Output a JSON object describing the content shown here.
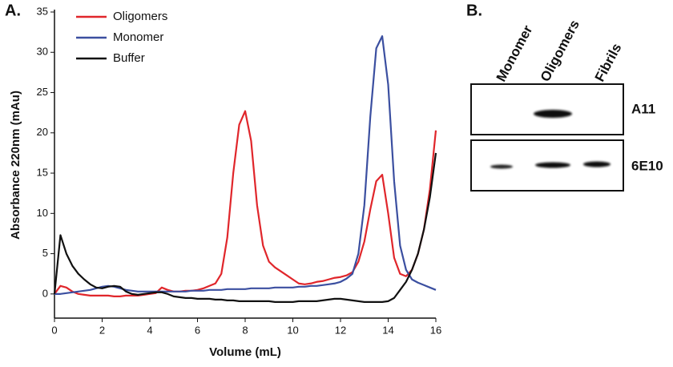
{
  "panels": [
    "A.",
    "B."
  ],
  "chart_data": {
    "type": "line",
    "xlabel": "Volume (mL)",
    "ylabel": "Absorbance 220nm (mAu)",
    "x": [
      0,
      0.25,
      0.5,
      0.75,
      1,
      1.25,
      1.5,
      1.75,
      2,
      2.25,
      2.5,
      2.75,
      3,
      3.25,
      3.5,
      3.75,
      4,
      4.25,
      4.5,
      4.75,
      5,
      5.25,
      5.5,
      5.75,
      6,
      6.25,
      6.5,
      6.75,
      7,
      7.25,
      7.5,
      7.75,
      8,
      8.25,
      8.5,
      8.75,
      9,
      9.25,
      9.5,
      9.75,
      10,
      10.25,
      10.5,
      10.75,
      11,
      11.25,
      11.5,
      11.75,
      12,
      12.25,
      12.5,
      12.75,
      13,
      13.25,
      13.5,
      13.75,
      14,
      14.25,
      14.5,
      14.75,
      15,
      15.25,
      15.5,
      15.75,
      16
    ],
    "series": [
      {
        "name": "Oligomers",
        "color": "#e0262b",
        "values": [
          0,
          1.0,
          0.8,
          0.3,
          0,
          -0.1,
          -0.2,
          -0.2,
          -0.2,
          -0.2,
          -0.3,
          -0.3,
          -0.2,
          -0.2,
          -0.2,
          -0.1,
          0,
          0.1,
          0.8,
          0.5,
          0.3,
          0.3,
          0.4,
          0.4,
          0.5,
          0.7,
          1.0,
          1.3,
          2.5,
          7,
          15,
          21,
          22.7,
          19,
          11,
          6,
          4,
          3.3,
          2.8,
          2.3,
          1.8,
          1.3,
          1.2,
          1.3,
          1.5,
          1.6,
          1.8,
          2,
          2.1,
          2.3,
          2.7,
          4,
          6.5,
          10.5,
          14,
          14.8,
          10,
          4.5,
          2.5,
          2.2,
          3,
          5,
          8,
          13,
          20.3
        ]
      },
      {
        "name": "Monomer",
        "color": "#3b4fa0",
        "values": [
          0,
          0,
          0.1,
          0.2,
          0.3,
          0.4,
          0.5,
          0.7,
          0.9,
          1.0,
          0.9,
          0.7,
          0.5,
          0.4,
          0.3,
          0.3,
          0.3,
          0.3,
          0.3,
          0.3,
          0.3,
          0.3,
          0.3,
          0.4,
          0.4,
          0.4,
          0.5,
          0.5,
          0.5,
          0.6,
          0.6,
          0.6,
          0.6,
          0.7,
          0.7,
          0.7,
          0.7,
          0.8,
          0.8,
          0.8,
          0.8,
          0.9,
          0.9,
          1.0,
          1.0,
          1.1,
          1.2,
          1.3,
          1.5,
          1.9,
          2.5,
          5,
          11,
          22,
          30.5,
          32,
          26,
          14,
          6,
          3,
          1.8,
          1.4,
          1.1,
          0.8,
          0.5
        ]
      },
      {
        "name": "Buffer",
        "color": "#111111",
        "values": [
          0,
          7.3,
          5,
          3.5,
          2.5,
          1.8,
          1.2,
          0.8,
          0.7,
          0.9,
          1.0,
          0.9,
          0.3,
          0,
          -0.1,
          0,
          0.1,
          0.2,
          0.2,
          0,
          -0.3,
          -0.4,
          -0.5,
          -0.5,
          -0.6,
          -0.6,
          -0.6,
          -0.7,
          -0.7,
          -0.8,
          -0.8,
          -0.9,
          -0.9,
          -0.9,
          -0.9,
          -0.9,
          -0.9,
          -1,
          -1,
          -1,
          -1,
          -0.9,
          -0.9,
          -0.9,
          -0.9,
          -0.8,
          -0.7,
          -0.6,
          -0.6,
          -0.7,
          -0.8,
          -0.9,
          -1,
          -1,
          -1,
          -1,
          -0.9,
          -0.5,
          0.5,
          1.5,
          3,
          5,
          8,
          12,
          17.5
        ]
      }
    ],
    "xlim": [
      0,
      16
    ],
    "xticks": [
      0,
      2,
      4,
      6,
      8,
      10,
      12,
      14,
      16
    ],
    "ylim": [
      -3,
      35
    ],
    "yticks": [
      0,
      5,
      10,
      15,
      20,
      25,
      30,
      35
    ],
    "legend": "upper left"
  },
  "blot": {
    "lanes": [
      "Monomer",
      "Oligomers",
      "Fibrils"
    ],
    "rows": [
      "A11",
      "6E10"
    ]
  }
}
